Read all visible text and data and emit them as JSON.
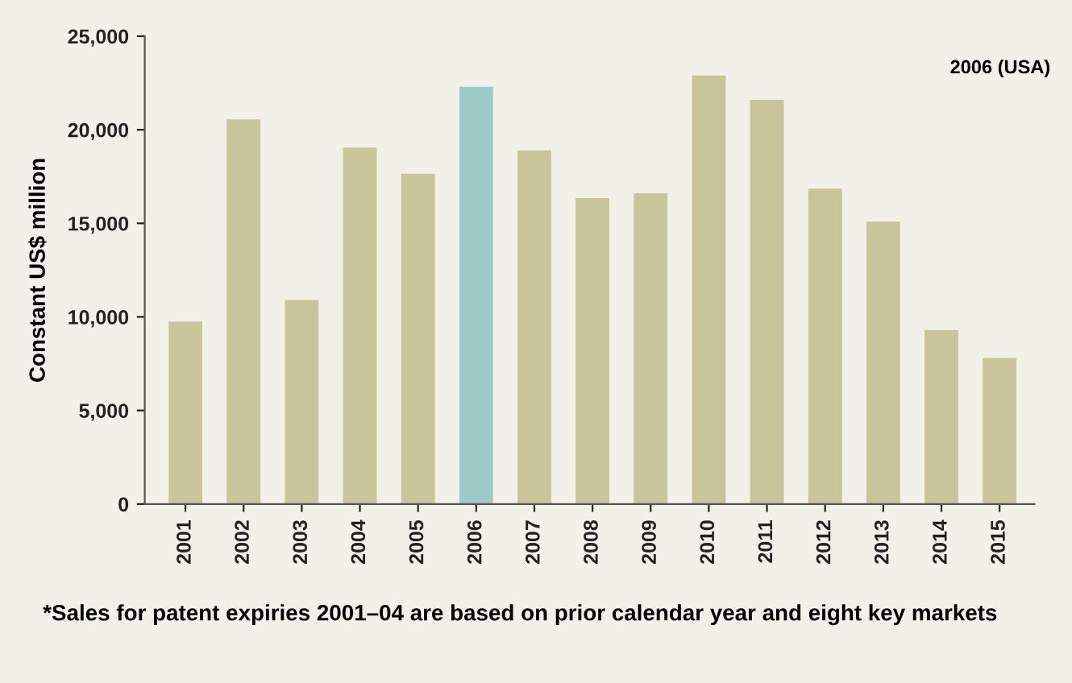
{
  "chart_data": {
    "type": "bar",
    "ylabel": "Constant US$ million",
    "categories": [
      "2001",
      "2002",
      "2003",
      "2004",
      "2005",
      "2006",
      "2007",
      "2008",
      "2009",
      "2010",
      "2011",
      "2012",
      "2013",
      "2014",
      "2015"
    ],
    "values": [
      9750,
      20550,
      10900,
      19050,
      17650,
      22300,
      18900,
      16350,
      16600,
      22900,
      21600,
      16850,
      15100,
      9300,
      7800
    ],
    "colors": [
      "#c8c59a",
      "#c8c59a",
      "#c8c59a",
      "#c8c59a",
      "#c8c59a",
      "#9ecbc8",
      "#c8c59a",
      "#c8c59a",
      "#c8c59a",
      "#c8c59a",
      "#c8c59a",
      "#c8c59a",
      "#c8c59a",
      "#c8c59a",
      "#c8c59a"
    ],
    "ylim": [
      0,
      25000
    ],
    "yticks": [
      {
        "value": 0,
        "label": "0"
      },
      {
        "value": 5000,
        "label": "5,000"
      },
      {
        "value": 10000,
        "label": "10,000"
      },
      {
        "value": 15000,
        "label": "15,000"
      },
      {
        "value": 20000,
        "label": "20,000"
      },
      {
        "value": 25000,
        "label": "25,000"
      }
    ],
    "grid": false,
    "annotations": [
      "2006 (USA)",
      "*Sales for patent expiries 2001–04 are based on prior calendar year and eight key markets"
    ]
  }
}
